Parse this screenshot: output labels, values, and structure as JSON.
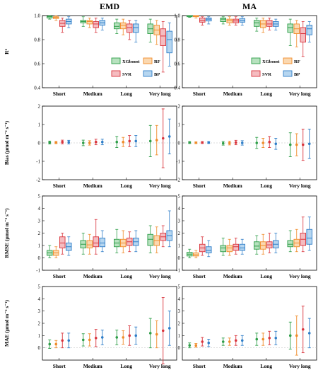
{
  "columns": [
    "EMD",
    "MA"
  ],
  "legend": {
    "position": "bottom-right of first row panels",
    "entries": [
      "XGboost",
      "RF",
      "SVR",
      "BP"
    ]
  },
  "colors": {
    "XGboost": "#2e9e48",
    "RF": "#f08c2a",
    "SVR": "#d9343c",
    "BP": "#2f7ec8",
    "XGboost_fill": "#b7e2bf",
    "RF_fill": "#fbd8b0",
    "SVR_fill": "#f5bcc0",
    "BP_fill": "#b6d6f0"
  },
  "chart_data": [
    {
      "type": "box",
      "column": "EMD",
      "ylabel": "R²",
      "ylim": [
        0.4,
        1.0
      ],
      "yticks": [
        "0.4",
        "0.6",
        "0.8",
        "1.0"
      ],
      "categories": [
        "Short",
        "Medium",
        "Long",
        "Very long"
      ],
      "series": [
        {
          "name": "XGboost",
          "boxes": [
            [
              0.97,
              0.98,
              0.99,
              0.995,
              1.0
            ],
            [
              0.91,
              0.94,
              0.95,
              0.96,
              0.99
            ],
            [
              0.85,
              0.89,
              0.91,
              0.94,
              0.97
            ],
            [
              0.78,
              0.85,
              0.89,
              0.93,
              0.97
            ]
          ]
        },
        {
          "name": "RF",
          "boxes": [
            [
              0.96,
              0.975,
              0.985,
              0.99,
              1.0
            ],
            [
              0.9,
              0.93,
              0.95,
              0.96,
              0.98
            ],
            [
              0.84,
              0.89,
              0.92,
              0.94,
              0.97
            ],
            [
              0.76,
              0.84,
              0.88,
              0.92,
              0.96
            ]
          ]
        },
        {
          "name": "SVR",
          "boxes": [
            [
              0.86,
              0.91,
              0.935,
              0.96,
              0.98
            ],
            [
              0.86,
              0.9,
              0.93,
              0.95,
              0.98
            ],
            [
              0.8,
              0.86,
              0.9,
              0.93,
              0.96
            ],
            [
              0.53,
              0.75,
              0.83,
              0.89,
              0.95
            ]
          ]
        },
        {
          "name": "BP",
          "boxes": [
            [
              0.9,
              0.93,
              0.95,
              0.97,
              0.99
            ],
            [
              0.88,
              0.92,
              0.94,
              0.96,
              0.98
            ],
            [
              0.78,
              0.86,
              0.9,
              0.93,
              0.96
            ],
            [
              0.58,
              0.69,
              0.8,
              0.87,
              0.94
            ]
          ]
        }
      ]
    },
    {
      "type": "box",
      "column": "MA",
      "ylabel": "",
      "ylim": [
        0.4,
        1.0
      ],
      "yticks": [
        "0.4",
        "0.6",
        "0.8",
        "1.0"
      ],
      "categories": [
        "Short",
        "Medium",
        "Long",
        "Very long"
      ],
      "series": [
        {
          "name": "XGboost",
          "boxes": [
            [
              0.985,
              0.99,
              0.995,
              1.0,
              1.0
            ],
            [
              0.93,
              0.95,
              0.97,
              0.98,
              0.99
            ],
            [
              0.87,
              0.91,
              0.94,
              0.96,
              0.98
            ],
            [
              0.75,
              0.86,
              0.9,
              0.93,
              0.97
            ]
          ]
        },
        {
          "name": "RF",
          "boxes": [
            [
              0.98,
              0.99,
              0.995,
              1.0,
              1.0
            ],
            [
              0.92,
              0.94,
              0.96,
              0.97,
              0.99
            ],
            [
              0.86,
              0.9,
              0.93,
              0.96,
              0.98
            ],
            [
              0.74,
              0.85,
              0.89,
              0.93,
              0.96
            ]
          ]
        },
        {
          "name": "SVR",
          "boxes": [
            [
              0.92,
              0.945,
              0.96,
              0.98,
              0.99
            ],
            [
              0.92,
              0.94,
              0.955,
              0.97,
              0.99
            ],
            [
              0.88,
              0.91,
              0.93,
              0.96,
              0.98
            ],
            [
              0.66,
              0.78,
              0.85,
              0.9,
              0.95
            ]
          ]
        },
        {
          "name": "BP",
          "boxes": [
            [
              0.93,
              0.955,
              0.97,
              0.98,
              0.99
            ],
            [
              0.92,
              0.945,
              0.96,
              0.975,
              0.99
            ],
            [
              0.88,
              0.91,
              0.93,
              0.95,
              0.97
            ],
            [
              0.78,
              0.84,
              0.89,
              0.92,
              0.95
            ]
          ]
        }
      ]
    },
    {
      "type": "mean_sd",
      "column": "EMD",
      "ylabel": "Bias (μmol m⁻² s⁻¹)",
      "ylim": [
        -2,
        2
      ],
      "yticks": [
        "-2",
        "-1",
        "0",
        "1",
        "2"
      ],
      "categories": [
        "Short",
        "Medium",
        "Long",
        "Very long"
      ],
      "series": [
        {
          "name": "XGboost",
          "mean": [
            0.02,
            0.0,
            0.05,
            0.1
          ],
          "sd": [
            0.08,
            0.15,
            0.3,
            0.85
          ]
        },
        {
          "name": "RF",
          "mean": [
            0.02,
            0.0,
            0.05,
            0.15
          ],
          "sd": [
            0.06,
            0.12,
            0.25,
            0.8
          ]
        },
        {
          "name": "SVR",
          "mean": [
            0.05,
            0.05,
            0.1,
            0.25
          ],
          "sd": [
            0.1,
            0.15,
            0.3,
            1.6
          ]
        },
        {
          "name": "BP",
          "mean": [
            0.04,
            0.05,
            0.1,
            0.35
          ],
          "sd": [
            0.1,
            0.15,
            0.3,
            0.95
          ]
        }
      ]
    },
    {
      "type": "mean_sd",
      "column": "MA",
      "ylabel": "",
      "ylim": [
        -2,
        2
      ],
      "yticks": [
        "-2",
        "-1",
        "0",
        "1",
        "2"
      ],
      "categories": [
        "Short",
        "Medium",
        "Long",
        "Very long"
      ],
      "series": [
        {
          "name": "XGboost",
          "mean": [
            0.02,
            -0.02,
            0.0,
            -0.1
          ],
          "sd": [
            0.05,
            0.1,
            0.3,
            0.65
          ]
        },
        {
          "name": "RF",
          "mean": [
            0.01,
            -0.01,
            0.0,
            -0.1
          ],
          "sd": [
            0.05,
            0.1,
            0.25,
            0.6
          ]
        },
        {
          "name": "SVR",
          "mean": [
            0.02,
            0.02,
            0.05,
            -0.1
          ],
          "sd": [
            0.05,
            0.12,
            0.3,
            0.85
          ]
        },
        {
          "name": "BP",
          "mean": [
            0.02,
            0.0,
            -0.05,
            -0.05
          ],
          "sd": [
            0.05,
            0.12,
            0.3,
            0.8
          ]
        }
      ]
    },
    {
      "type": "box",
      "column": "EMD",
      "ylabel": "RMSE (μmol m⁻² s⁻¹)",
      "ylim": [
        -1,
        5
      ],
      "yticks": [
        "-1",
        "0",
        "1",
        "2",
        "3",
        "4",
        "5"
      ],
      "categories": [
        "Short",
        "Medium",
        "Long",
        "Very long"
      ],
      "series": [
        {
          "name": "XGboost",
          "boxes": [
            [
              0.0,
              0.2,
              0.4,
              0.6,
              1.0
            ],
            [
              0.3,
              0.8,
              1.1,
              1.4,
              2.0
            ],
            [
              0.4,
              0.9,
              1.2,
              1.5,
              2.3
            ],
            [
              0.4,
              1.0,
              1.5,
              1.9,
              2.6
            ]
          ]
        },
        {
          "name": "RF",
          "boxes": [
            [
              0.0,
              0.2,
              0.4,
              0.6,
              0.9
            ],
            [
              0.3,
              0.8,
              1.05,
              1.4,
              1.9
            ],
            [
              0.4,
              0.9,
              1.2,
              1.5,
              2.2
            ],
            [
              0.4,
              1.0,
              1.4,
              1.8,
              2.5
            ]
          ]
        },
        {
          "name": "SVR",
          "boxes": [
            [
              0.3,
              0.8,
              1.2,
              1.7,
              2.0
            ],
            [
              0.3,
              0.9,
              1.2,
              1.7,
              3.1
            ],
            [
              0.5,
              1.0,
              1.3,
              1.6,
              2.1
            ],
            [
              0.9,
              1.4,
              1.7,
              2.0,
              2.6
            ]
          ]
        },
        {
          "name": "BP",
          "boxes": [
            [
              0.2,
              0.6,
              0.9,
              1.2,
              1.7
            ],
            [
              0.5,
              0.9,
              1.2,
              1.6,
              2.2
            ],
            [
              0.5,
              1.0,
              1.3,
              1.6,
              2.2
            ],
            [
              0.9,
              1.4,
              1.8,
              2.2,
              3.8
            ]
          ]
        }
      ]
    },
    {
      "type": "box",
      "column": "MA",
      "ylabel": "",
      "ylim": [
        -1,
        5
      ],
      "yticks": [
        "-1",
        "0",
        "1",
        "2",
        "3",
        "4",
        "5"
      ],
      "categories": [
        "Short",
        "Medium",
        "Long",
        "Very long"
      ],
      "series": [
        {
          "name": "XGboost",
          "boxes": [
            [
              0.0,
              0.15,
              0.3,
              0.45,
              0.7
            ],
            [
              0.2,
              0.5,
              0.8,
              1.0,
              1.6
            ],
            [
              0.3,
              0.7,
              0.95,
              1.3,
              1.8
            ],
            [
              0.5,
              0.9,
              1.1,
              1.4,
              2.2
            ]
          ]
        },
        {
          "name": "RF",
          "boxes": [
            [
              0.0,
              0.15,
              0.25,
              0.4,
              0.6
            ],
            [
              0.2,
              0.5,
              0.8,
              1.0,
              1.5
            ],
            [
              0.3,
              0.7,
              1.0,
              1.3,
              1.9
            ],
            [
              0.5,
              0.9,
              1.2,
              1.5,
              2.3
            ]
          ]
        },
        {
          "name": "SVR",
          "boxes": [
            [
              0.2,
              0.5,
              0.8,
              1.1,
              1.7
            ],
            [
              0.3,
              0.6,
              0.9,
              1.1,
              1.6
            ],
            [
              0.4,
              0.8,
              1.05,
              1.3,
              2.0
            ],
            [
              0.5,
              1.0,
              1.5,
              2.0,
              3.3
            ]
          ]
        },
        {
          "name": "BP",
          "boxes": [
            [
              0.1,
              0.4,
              0.6,
              0.9,
              1.4
            ],
            [
              0.3,
              0.6,
              0.8,
              1.1,
              1.5
            ],
            [
              0.4,
              0.8,
              1.1,
              1.4,
              2.0
            ],
            [
              0.6,
              1.1,
              1.6,
              2.3,
              3.3
            ]
          ]
        }
      ]
    },
    {
      "type": "mean_sd",
      "column": "EMD",
      "ylabel": "MAE (μmol m⁻² s⁻¹)",
      "ylim": [
        -1,
        5
      ],
      "yticks": [
        "0",
        "1",
        "2",
        "3",
        "4",
        "5"
      ],
      "categories": [
        "Short",
        "Medium",
        "Long",
        "Very long"
      ],
      "series": [
        {
          "name": "XGboost",
          "mean": [
            0.3,
            0.65,
            0.85,
            1.2
          ],
          "sd": [
            0.35,
            0.5,
            0.6,
            1.2
          ]
        },
        {
          "name": "RF",
          "mean": [
            0.3,
            0.65,
            0.85,
            1.1
          ],
          "sd": [
            0.3,
            0.5,
            0.55,
            1.1
          ]
        },
        {
          "name": "SVR",
          "mean": [
            0.6,
            0.8,
            1.0,
            1.4
          ],
          "sd": [
            0.6,
            0.7,
            0.8,
            2.7
          ]
        },
        {
          "name": "BP",
          "mean": [
            0.6,
            0.85,
            1.0,
            1.6
          ],
          "sd": [
            0.6,
            0.6,
            0.7,
            1.4
          ]
        }
      ]
    },
    {
      "type": "mean_sd",
      "column": "MA",
      "ylabel": "",
      "ylim": [
        -1,
        5
      ],
      "yticks": [
        "0",
        "1",
        "2",
        "3",
        "4",
        "5"
      ],
      "categories": [
        "Short",
        "Medium",
        "Long",
        "Very long"
      ],
      "series": [
        {
          "name": "XGboost",
          "mean": [
            0.2,
            0.5,
            0.7,
            1.0
          ],
          "sd": [
            0.2,
            0.3,
            0.5,
            1.1
          ]
        },
        {
          "name": "RF",
          "mean": [
            0.2,
            0.5,
            0.7,
            1.0
          ],
          "sd": [
            0.15,
            0.3,
            0.5,
            1.6
          ]
        },
        {
          "name": "SVR",
          "mean": [
            0.5,
            0.6,
            0.8,
            1.5
          ],
          "sd": [
            0.35,
            0.4,
            0.55,
            1.9
          ]
        },
        {
          "name": "BP",
          "mean": [
            0.4,
            0.6,
            0.8,
            1.2
          ],
          "sd": [
            0.3,
            0.4,
            0.55,
            1.2
          ]
        }
      ]
    }
  ]
}
